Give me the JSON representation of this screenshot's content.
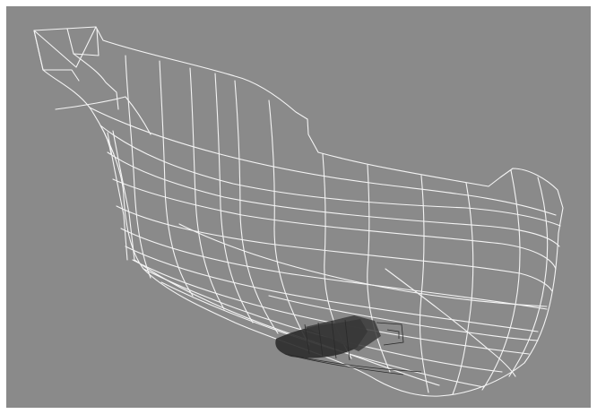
{
  "viewport": {
    "background": "#ffffff",
    "canvas_color": "#8a8a8a",
    "wire_color": "#f4f4f4",
    "detail_color": "#2b2b2b",
    "has_text": false
  },
  "model": {
    "kind": "hull-wireframe",
    "render_style": "wireframe"
  }
}
